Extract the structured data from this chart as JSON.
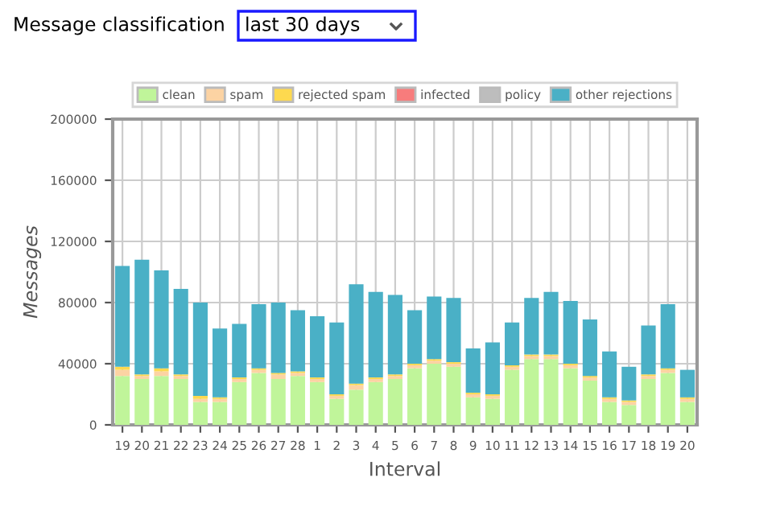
{
  "chart_data": {
    "type": "bar",
    "stacked": true,
    "title": "Message classification",
    "subtitle": "last 30 days",
    "xlabel": "Interval",
    "ylabel": "Messages",
    "categories": [
      "19",
      "20",
      "21",
      "22",
      "23",
      "24",
      "25",
      "26",
      "27",
      "28",
      "1",
      "2",
      "3",
      "4",
      "5",
      "6",
      "7",
      "8",
      "9",
      "10",
      "11",
      "12",
      "13",
      "14",
      "15",
      "16",
      "17",
      "18",
      "19",
      "20"
    ],
    "series": [
      {
        "name": "clean",
        "color": "#c0f59a",
        "values": [
          32000,
          30000,
          32000,
          30000,
          15000,
          15000,
          28000,
          34000,
          30000,
          32000,
          28000,
          17000,
          23000,
          28000,
          30000,
          37000,
          40000,
          38000,
          18000,
          17000,
          36000,
          43000,
          43000,
          37000,
          29000,
          15000,
          13000,
          30000,
          34000,
          15000
        ]
      },
      {
        "name": "spam",
        "color": "#fcd3a3",
        "values": [
          4000,
          2000,
          3000,
          2000,
          2000,
          2000,
          2000,
          2000,
          3000,
          2000,
          2000,
          2000,
          3000,
          2000,
          2000,
          2000,
          2000,
          2000,
          2000,
          2000,
          2000,
          2000,
          2000,
          2000,
          2000,
          2000,
          2000,
          2000,
          2000,
          2000
        ]
      },
      {
        "name": "rejected spam",
        "color": "#fdd94f",
        "values": [
          2000,
          1000,
          2000,
          1000,
          2000,
          1000,
          1000,
          1000,
          1000,
          1000,
          1000,
          1000,
          1000,
          1000,
          1000,
          1000,
          1000,
          1000,
          1000,
          1000,
          1000,
          1000,
          1000,
          1000,
          1000,
          1000,
          1000,
          1000,
          1000,
          1000
        ]
      },
      {
        "name": "infected",
        "color": "#f77c7c",
        "values": [
          0,
          0,
          0,
          0,
          0,
          0,
          0,
          0,
          0,
          0,
          0,
          0,
          0,
          0,
          0,
          0,
          0,
          0,
          0,
          0,
          0,
          0,
          0,
          0,
          0,
          0,
          0,
          0,
          0,
          0
        ]
      },
      {
        "name": "policy",
        "color": "#bdbdbd",
        "values": [
          0,
          0,
          0,
          0,
          0,
          0,
          0,
          0,
          0,
          0,
          0,
          0,
          0,
          0,
          0,
          0,
          0,
          0,
          0,
          0,
          0,
          0,
          0,
          0,
          0,
          0,
          0,
          0,
          0,
          0
        ]
      },
      {
        "name": "other rejections",
        "color": "#4ab0c6",
        "values": [
          66000,
          75000,
          64000,
          56000,
          61000,
          45000,
          35000,
          42000,
          46000,
          40000,
          40000,
          47000,
          65000,
          56000,
          52000,
          35000,
          41000,
          42000,
          29000,
          34000,
          28000,
          37000,
          41000,
          41000,
          37000,
          30000,
          22000,
          32000,
          42000,
          18000
        ]
      }
    ],
    "ylim": [
      0,
      200000
    ],
    "yticks": [
      0,
      40000,
      80000,
      120000,
      160000,
      200000
    ],
    "grid": true,
    "legend": "top"
  }
}
